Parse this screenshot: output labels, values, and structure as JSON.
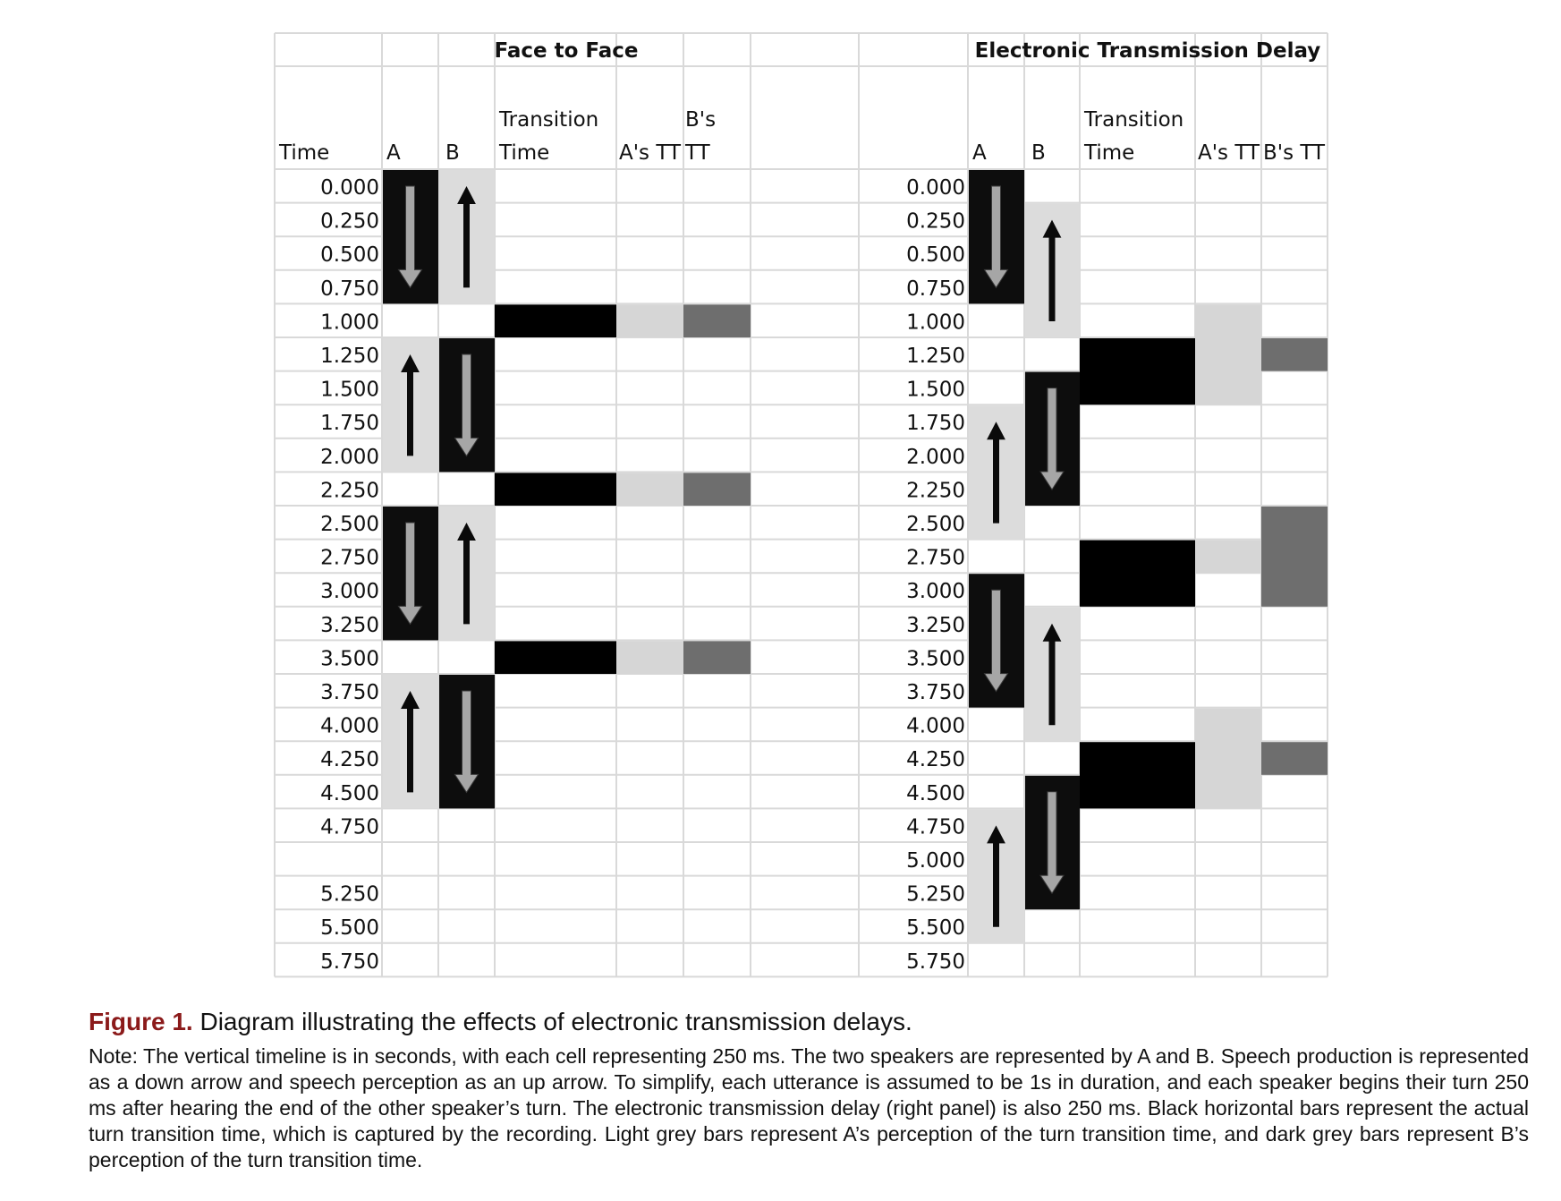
{
  "panels": [
    {
      "title": "Face to Face",
      "columns": {
        "time": "Time",
        "a": "A",
        "b": "B",
        "transition": [
          "Transition",
          "Time"
        ],
        "a_tt": "A's TT",
        "b_tt": [
          "B's",
          "TT"
        ]
      },
      "times": [
        "0.000",
        "0.250",
        "0.500",
        "0.750",
        "1.000",
        "1.250",
        "1.500",
        "1.750",
        "2.000",
        "2.250",
        "2.500",
        "2.750",
        "3.000",
        "3.250",
        "3.500",
        "3.750",
        "4.000",
        "4.250",
        "4.500",
        "4.750",
        "",
        "5.250",
        "5.500",
        "5.750"
      ],
      "speech": [
        {
          "speaker": "A",
          "start": 0,
          "length": 4,
          "kind": "production"
        },
        {
          "speaker": "B",
          "start": 0,
          "length": 4,
          "kind": "perception"
        },
        {
          "speaker": "A",
          "start": 5,
          "length": 4,
          "kind": "perception"
        },
        {
          "speaker": "B",
          "start": 5,
          "length": 4,
          "kind": "production"
        },
        {
          "speaker": "A",
          "start": 10,
          "length": 4,
          "kind": "production"
        },
        {
          "speaker": "B",
          "start": 10,
          "length": 4,
          "kind": "perception"
        },
        {
          "speaker": "A",
          "start": 15,
          "length": 4,
          "kind": "perception"
        },
        {
          "speaker": "B",
          "start": 15,
          "length": 4,
          "kind": "production"
        }
      ],
      "transition_bars": [
        {
          "column": "transition",
          "start": 4,
          "length": 1
        },
        {
          "column": "a_tt",
          "start": 4,
          "length": 1
        },
        {
          "column": "b_tt",
          "start": 4,
          "length": 1
        },
        {
          "column": "transition",
          "start": 9,
          "length": 1
        },
        {
          "column": "a_tt",
          "start": 9,
          "length": 1
        },
        {
          "column": "b_tt",
          "start": 9,
          "length": 1
        },
        {
          "column": "transition",
          "start": 14,
          "length": 1
        },
        {
          "column": "a_tt",
          "start": 14,
          "length": 1
        },
        {
          "column": "b_tt",
          "start": 14,
          "length": 1
        }
      ]
    },
    {
      "title": "Electronic Transmission Delay",
      "columns": {
        "time": "",
        "a": "A",
        "b": "B",
        "transition": [
          "Transition",
          "Time"
        ],
        "a_tt": "A's TT",
        "b_tt": "B's TT"
      },
      "times": [
        "0.000",
        "0.250",
        "0.500",
        "0.750",
        "1.000",
        "1.250",
        "1.500",
        "1.750",
        "2.000",
        "2.250",
        "2.500",
        "2.750",
        "3.000",
        "3.250",
        "3.500",
        "3.750",
        "4.000",
        "4.250",
        "4.500",
        "4.750",
        "5.000",
        "5.250",
        "5.500",
        "5.750"
      ],
      "speech": [
        {
          "speaker": "A",
          "start": 0,
          "length": 4,
          "kind": "production"
        },
        {
          "speaker": "B",
          "start": 1,
          "length": 4,
          "kind": "perception"
        },
        {
          "speaker": "A",
          "start": 7,
          "length": 4,
          "kind": "perception"
        },
        {
          "speaker": "B",
          "start": 6,
          "length": 4,
          "kind": "production"
        },
        {
          "speaker": "A",
          "start": 12,
          "length": 4,
          "kind": "production"
        },
        {
          "speaker": "B",
          "start": 13,
          "length": 4,
          "kind": "perception"
        },
        {
          "speaker": "A",
          "start": 19,
          "length": 4,
          "kind": "perception"
        },
        {
          "speaker": "B",
          "start": 18,
          "length": 4,
          "kind": "production"
        }
      ],
      "transition_bars": [
        {
          "column": "transition",
          "start": 5,
          "length": 2
        },
        {
          "column": "a_tt",
          "start": 4,
          "length": 3
        },
        {
          "column": "b_tt",
          "start": 5,
          "length": 1
        },
        {
          "column": "transition",
          "start": 11,
          "length": 2
        },
        {
          "column": "a_tt",
          "start": 11,
          "length": 1
        },
        {
          "column": "b_tt",
          "start": 10,
          "length": 3
        },
        {
          "column": "transition",
          "start": 17,
          "length": 2
        },
        {
          "column": "a_tt",
          "start": 16,
          "length": 3
        },
        {
          "column": "b_tt",
          "start": 17,
          "length": 1
        }
      ]
    }
  ],
  "colors": {
    "production_bg": "#0d0d0d",
    "production_arrow": "#a6a6a6",
    "perception_bg": "#dcdcdc",
    "perception_arrow": "#0a0a0a",
    "transition": "#000000",
    "a_tt": "#d6d6d6",
    "b_tt": "#6e6e6e",
    "grid": "#d9d9d9"
  },
  "caption": {
    "label": "Figure 1.",
    "title": " Diagram illustrating the effects of electronic transmission delays.",
    "note": "Note: The vertical timeline is in seconds, with each cell representing 250 ms. The two speakers are represented by A and B. Speech production is represented as a down arrow and speech perception as an up arrow. To simplify, each utterance is assumed to be 1s in duration, and each speaker begins their turn 250 ms after hearing the end of the other speaker’s turn. The electronic transmission delay (right panel) is also 250 ms. Black horizontal bars represent the actual turn transition time, which is captured by the recording. Light grey bars represent A’s perception of the turn transition time, and dark grey bars represent B’s perception of the turn transition time."
  }
}
